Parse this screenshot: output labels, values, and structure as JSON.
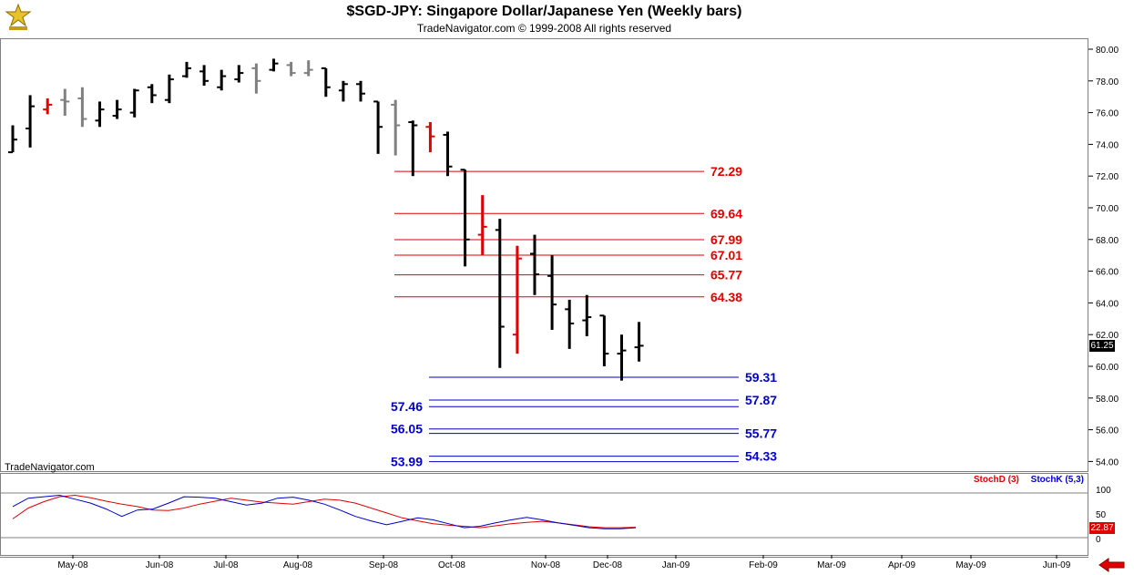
{
  "header": {
    "title": "$SGD-JPY:  Singapore Dollar/Japanese Yen  (Weekly bars)",
    "copyright": "TradeNavigator.com © 1999-2008 All rights reserved"
  },
  "footer": {
    "brand": "TradeNavigator.com"
  },
  "stochastic": {
    "d_label": "StochD (3)",
    "k_label": "StochK (5,3)",
    "levels": [
      0,
      50,
      100
    ],
    "last_value": "22.87",
    "d_color": "#e00000",
    "k_color": "#0000c8"
  },
  "price_tag": "61.25",
  "colors": {
    "fib_retracement": "#e00000",
    "fib_extension": "#0000c8",
    "up_bar": "#000000",
    "inside_bar": "#808080",
    "signal_bar": "#e00000"
  },
  "chart_data": {
    "type": "ohlc",
    "title": "$SGD-JPY:  Singapore Dollar/Japanese Yen  (Weekly bars)",
    "ylim": [
      53,
      81
    ],
    "y_ticks": [
      "80.00",
      "78.00",
      "76.00",
      "74.00",
      "72.00",
      "70.00",
      "68.00",
      "66.00",
      "64.00",
      "62.00",
      "60.00",
      "58.00",
      "56.00",
      "54.00"
    ],
    "x_ticks": [
      "May-08",
      "Jun-08",
      "Jul-08",
      "Aug-08",
      "Sep-08",
      "Oct-08",
      "Nov-08",
      "Dec-08",
      "Jan-09",
      "Feb-09",
      "Mar-09",
      "Apr-09",
      "May-09",
      "Jun-09"
    ],
    "bars": [
      {
        "o": 73.5,
        "h": 75.2,
        "l": 73.5,
        "c": 74.3,
        "k": "b"
      },
      {
        "o": 75.0,
        "h": 77.1,
        "l": 73.8,
        "c": 76.4,
        "k": "b"
      },
      {
        "o": 76.2,
        "h": 76.9,
        "l": 75.9,
        "c": 76.5,
        "k": "r"
      },
      {
        "o": 76.8,
        "h": 77.5,
        "l": 75.8,
        "c": 76.7,
        "k": "g"
      },
      {
        "o": 76.9,
        "h": 77.6,
        "l": 75.1,
        "c": 75.6,
        "k": "g"
      },
      {
        "o": 75.5,
        "h": 76.7,
        "l": 75.1,
        "c": 76.2,
        "k": "b"
      },
      {
        "o": 75.8,
        "h": 76.8,
        "l": 75.6,
        "c": 76.2,
        "k": "b"
      },
      {
        "o": 76.0,
        "h": 77.5,
        "l": 75.7,
        "c": 77.4,
        "k": "b"
      },
      {
        "o": 77.6,
        "h": 77.8,
        "l": 76.6,
        "c": 77.1,
        "k": "b"
      },
      {
        "o": 76.8,
        "h": 78.4,
        "l": 76.6,
        "c": 78.1,
        "k": "b"
      },
      {
        "o": 78.3,
        "h": 79.2,
        "l": 78.2,
        "c": 78.8,
        "k": "b"
      },
      {
        "o": 78.6,
        "h": 79.0,
        "l": 77.7,
        "c": 78.0,
        "k": "b"
      },
      {
        "o": 77.6,
        "h": 78.7,
        "l": 77.4,
        "c": 78.3,
        "k": "b"
      },
      {
        "o": 78.1,
        "h": 79.0,
        "l": 77.9,
        "c": 78.5,
        "k": "b"
      },
      {
        "o": 78.8,
        "h": 79.1,
        "l": 77.2,
        "c": 78.0,
        "k": "g"
      },
      {
        "o": 78.7,
        "h": 79.4,
        "l": 78.6,
        "c": 79.1,
        "k": "b"
      },
      {
        "o": 79.0,
        "h": 79.2,
        "l": 78.3,
        "c": 78.5,
        "k": "g"
      },
      {
        "o": 78.5,
        "h": 79.3,
        "l": 78.3,
        "c": 78.7,
        "k": "g"
      },
      {
        "o": 78.8,
        "h": 78.8,
        "l": 77.0,
        "c": 77.6,
        "k": "b"
      },
      {
        "o": 77.4,
        "h": 78.0,
        "l": 76.7,
        "c": 77.8,
        "k": "b"
      },
      {
        "o": 77.8,
        "h": 78.0,
        "l": 76.7,
        "c": 77.2,
        "k": "b"
      },
      {
        "o": 76.7,
        "h": 76.7,
        "l": 73.4,
        "c": 75.1,
        "k": "b"
      },
      {
        "o": 76.5,
        "h": 76.8,
        "l": 73.3,
        "c": 75.2,
        "k": "g"
      },
      {
        "o": 75.4,
        "h": 75.5,
        "l": 72.0,
        "c": 75.2,
        "k": "b"
      },
      {
        "o": 75.1,
        "h": 75.4,
        "l": 73.5,
        "c": 74.5,
        "k": "r"
      },
      {
        "o": 74.6,
        "h": 74.8,
        "l": 72.0,
        "c": 72.6,
        "k": "b"
      },
      {
        "o": 72.4,
        "h": 72.4,
        "l": 66.3,
        "c": 68.0,
        "k": "b"
      },
      {
        "o": 68.3,
        "h": 70.8,
        "l": 67.0,
        "c": 68.8,
        "k": "r"
      },
      {
        "o": 68.6,
        "h": 69.3,
        "l": 59.9,
        "c": 62.5,
        "k": "b"
      },
      {
        "o": 62.0,
        "h": 67.6,
        "l": 60.8,
        "c": 66.8,
        "k": "r"
      },
      {
        "o": 67.1,
        "h": 68.3,
        "l": 64.5,
        "c": 65.8,
        "k": "b"
      },
      {
        "o": 65.7,
        "h": 67.0,
        "l": 62.3,
        "c": 63.9,
        "k": "b"
      },
      {
        "o": 63.6,
        "h": 64.2,
        "l": 61.1,
        "c": 62.7,
        "k": "b"
      },
      {
        "o": 62.9,
        "h": 64.5,
        "l": 61.9,
        "c": 63.1,
        "k": "b"
      },
      {
        "o": 63.2,
        "h": 63.2,
        "l": 60.0,
        "c": 60.8,
        "k": "b"
      },
      {
        "o": 60.8,
        "h": 62.0,
        "l": 59.1,
        "c": 61.0,
        "k": "b"
      },
      {
        "o": 61.2,
        "h": 62.8,
        "l": 60.3,
        "c": 61.3,
        "k": "b"
      }
    ],
    "bar_dates_first_last": [
      "Apr-08",
      "Dec-08"
    ],
    "fib_retracements": [
      72.29,
      69.64,
      67.99,
      67.01,
      65.77,
      64.38
    ],
    "fib_extensions": {
      "right": [
        59.31,
        57.87,
        55.77,
        54.33
      ],
      "left": [
        57.46,
        56.05,
        53.99
      ]
    },
    "stoch_d": [
      40,
      62,
      75,
      85,
      88,
      83,
      76,
      70,
      65,
      58,
      57,
      62,
      70,
      76,
      82,
      78,
      74,
      72,
      70,
      75,
      80,
      78,
      72,
      62,
      52,
      42,
      36,
      30,
      27,
      25,
      22,
      26,
      30,
      33,
      35,
      32,
      28,
      24,
      22,
      22,
      23
    ],
    "stoch_k": [
      65,
      82,
      85,
      88,
      80,
      72,
      60,
      45,
      58,
      60,
      72,
      85,
      84,
      82,
      75,
      68,
      72,
      82,
      84,
      78,
      70,
      58,
      45,
      36,
      28,
      35,
      42,
      38,
      30,
      22,
      25,
      32,
      38,
      43,
      38,
      32,
      27,
      22,
      20,
      20,
      22
    ],
    "stoch_ylim": [
      0,
      100
    ]
  }
}
